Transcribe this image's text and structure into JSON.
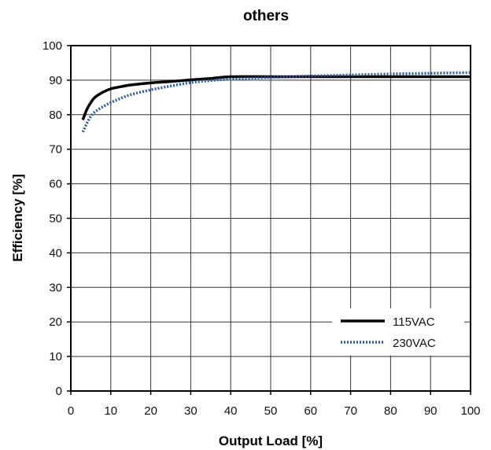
{
  "chart_data": {
    "type": "line",
    "title": "others",
    "xlabel": "Output Load [%]",
    "ylabel": "Efficiency [%]",
    "xlim": [
      0,
      100
    ],
    "ylim": [
      0,
      100
    ],
    "xticks": [
      "0",
      "10",
      "20",
      "30",
      "40",
      "50",
      "60",
      "70",
      "80",
      "90",
      "100"
    ],
    "yticks": [
      "0",
      "10",
      "20",
      "30",
      "40",
      "50",
      "60",
      "70",
      "80",
      "90",
      "100"
    ],
    "grid": true,
    "legend_position": "bottom-right",
    "series": [
      {
        "name": "115VAC",
        "color": "#000000",
        "style": "solid",
        "x": [
          3,
          4,
          5,
          6,
          8,
          10,
          12,
          15,
          20,
          25,
          30,
          35,
          40,
          50,
          60,
          70,
          80,
          90,
          100
        ],
        "y": [
          78.5,
          81.5,
          83.5,
          85,
          86.5,
          87.5,
          88,
          88.6,
          89.2,
          89.6,
          90.1,
          90.5,
          91,
          91,
          91,
          91,
          91,
          91,
          91
        ]
      },
      {
        "name": "230VAC",
        "color": "#2f5a96",
        "style": "dotted",
        "x": [
          3,
          4,
          5,
          6,
          8,
          10,
          12,
          15,
          20,
          25,
          30,
          35,
          40,
          50,
          60,
          70,
          80,
          90,
          100
        ],
        "y": [
          75,
          77.5,
          79.5,
          80.8,
          82.3,
          83.5,
          84.5,
          85.8,
          87.2,
          88.3,
          89.3,
          89.9,
          90.3,
          90.8,
          91.2,
          91.5,
          91.8,
          92,
          92.2
        ]
      }
    ]
  }
}
